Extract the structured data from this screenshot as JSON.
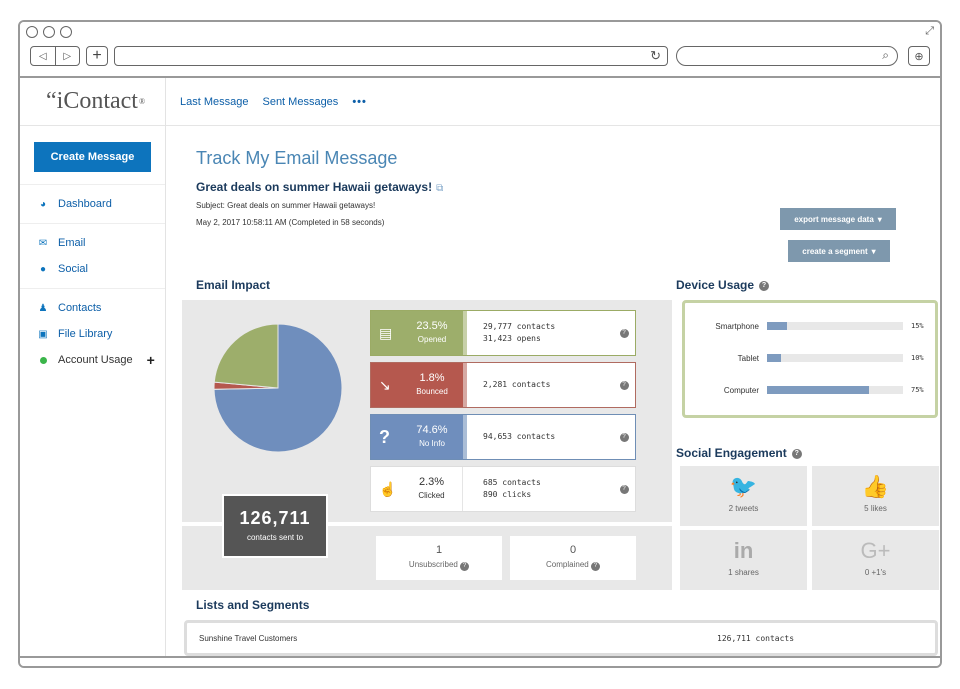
{
  "app": {
    "logo": "iContact",
    "logo_mark": "®",
    "logo_prefix": "“"
  },
  "topnav": {
    "links": [
      "Last Message",
      "Sent Messages"
    ],
    "more": "•••"
  },
  "sidebar": {
    "create_label": "Create Message",
    "items": [
      {
        "label": "Dashboard",
        "icon": "dashboard-icon"
      },
      {
        "label": "Email",
        "icon": "envelope-icon"
      },
      {
        "label": "Social",
        "icon": "chat-icon"
      },
      {
        "label": "Contacts",
        "icon": "people-icon"
      },
      {
        "label": "File Library",
        "icon": "image-icon"
      },
      {
        "label": "Account Usage",
        "icon": "status-dot",
        "action": "+"
      }
    ]
  },
  "header": {
    "page_title": "Track My Email Message",
    "message_title": "Great deals on summer Hawaii getaways!",
    "subject": "Subject: Great deals on summer Hawaii getaways!",
    "date": "May 2, 2017 10:58:11 AM (Completed in 58 seconds)",
    "export_label": "export message data",
    "segment_label": "create a segment"
  },
  "impact": {
    "heading": "Email Impact",
    "pie": [
      {
        "label": "Opened",
        "value": 23.5,
        "color": "#9dae6b"
      },
      {
        "label": "Bounced",
        "value": 1.8,
        "color": "#b5584e"
      },
      {
        "label": "No Info",
        "value": 74.6,
        "color": "#6f8ebd"
      },
      {
        "label": "Clicked",
        "value": 2.3,
        "color": "#e8e8e8"
      }
    ],
    "sent_count": "126,711",
    "sent_label": "contacts sent to",
    "stats": [
      {
        "pct": "23.5%",
        "label": "Opened",
        "line1": "29,777 contacts",
        "line2": "31,423 opens",
        "color": "#9dae6b"
      },
      {
        "pct": "1.8%",
        "label": "Bounced",
        "line1": "2,281 contacts",
        "line2": "",
        "color": "#b5584e"
      },
      {
        "pct": "74.6%",
        "label": "No Info",
        "line1": "94,653 contacts",
        "line2": "",
        "color": "#6f8ebd"
      },
      {
        "pct": "2.3%",
        "label": "Clicked",
        "line1": "685 contacts",
        "line2": "890 clicks",
        "color": "#ffffff"
      }
    ],
    "unsubscribed": {
      "value": "1",
      "label": "Unsubscribed"
    },
    "complained": {
      "value": "0",
      "label": "Complained"
    }
  },
  "device": {
    "heading": "Device Usage",
    "rows": [
      {
        "label": "Smartphone",
        "pct": "15%",
        "value": 0.15
      },
      {
        "label": "Tablet",
        "pct": "10%",
        "value": 0.1
      },
      {
        "label": "Computer",
        "pct": "75%",
        "value": 0.75
      }
    ]
  },
  "social": {
    "heading": "Social Engagement",
    "cells": [
      {
        "icon": "twitter-icon",
        "glyph": "🐦",
        "label": "2 tweets"
      },
      {
        "icon": "thumbs-up-icon",
        "glyph": "👍",
        "label": "5 likes"
      },
      {
        "icon": "linkedin-icon",
        "glyph": "in",
        "label": "1 shares"
      },
      {
        "icon": "google-plus-icon",
        "glyph": "G+",
        "label": "0 +1's"
      }
    ]
  },
  "lists": {
    "heading": "Lists and Segments",
    "rows": [
      {
        "name": "Sunshine Travel Customers",
        "count": "126,711 contacts"
      }
    ]
  }
}
